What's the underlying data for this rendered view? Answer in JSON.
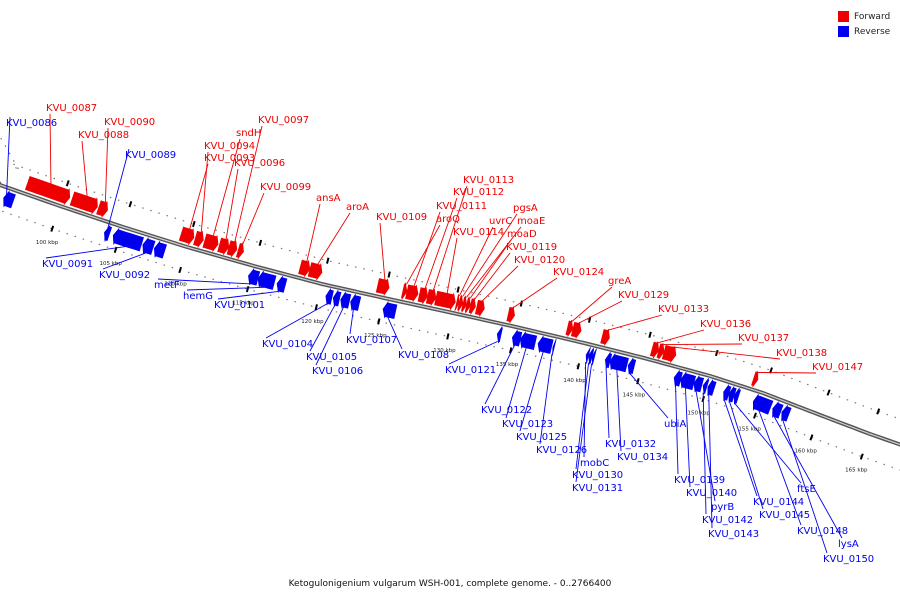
{
  "caption": "Ketogulonigenium vulgarum WSH-001, complete genome. - 0..2766400",
  "legend": [
    {
      "label": "Forward",
      "color": "#ee0000"
    },
    {
      "label": "Reverse",
      "color": "#0000ee"
    }
  ],
  "strand_colors": {
    "forward": "#ee0000",
    "reverse": "#0000ee"
  },
  "ticks": [
    {
      "kbp": 100,
      "label": "100 kbp"
    },
    {
      "kbp": 105,
      "label": "105 kbp"
    },
    {
      "kbp": 110,
      "label": "110 kbp"
    },
    {
      "kbp": 115,
      "label": "115 kbp"
    },
    {
      "kbp": 120,
      "label": "120 kbp"
    },
    {
      "kbp": 125,
      "label": "125 kbp"
    },
    {
      "kbp": 130,
      "label": "130 kbp"
    },
    {
      "kbp": 135,
      "label": "135 kbp"
    },
    {
      "kbp": 140,
      "label": "140 kbp"
    },
    {
      "kbp": 145,
      "label": "145 kbp"
    },
    {
      "kbp": 150,
      "label": "150 kbp"
    },
    {
      "kbp": 155,
      "label": "155 kbp"
    },
    {
      "kbp": 160,
      "label": "160 kbp"
    },
    {
      "kbp": 165,
      "label": "165 kbp"
    }
  ],
  "genes": [
    {
      "label": "KVU_0086",
      "strand": "-",
      "kbp": 95.6,
      "kbp_end": 96.4
    },
    {
      "label": "KVU_0087",
      "strand": "+",
      "kbp": 97.0,
      "kbp_end": 100.5
    },
    {
      "label": "KVU_0088",
      "strand": "+",
      "kbp": 100.7,
      "kbp_end": 102.7
    },
    {
      "label": "KVU_0090",
      "strand": "+",
      "kbp": 102.8,
      "kbp_end": 103.5
    },
    {
      "label": "KVU_0089",
      "strand": "-",
      "kbp": 103.8,
      "kbp_end": 104.2
    },
    {
      "label": "KVU_0091",
      "strand": "-",
      "kbp": 104.5,
      "kbp_end": 106.7
    },
    {
      "label": "KVU_0092",
      "strand": "-",
      "kbp": 106.8,
      "kbp_end": 107.6
    },
    {
      "label": "",
      "strand": "-",
      "kbp": 107.7,
      "kbp_end": 108.5
    },
    {
      "label": "KVU_0093",
      "strand": "+",
      "kbp": 109.3,
      "kbp_end": 110.3
    },
    {
      "label": "KVU_0094",
      "strand": "+",
      "kbp": 110.4,
      "kbp_end": 111.0
    },
    {
      "label": "sndH",
      "strand": "+",
      "kbp": 111.1,
      "kbp_end": 112.1
    },
    {
      "label": "KVU_0096",
      "strand": "+",
      "kbp": 112.2,
      "kbp_end": 112.9
    },
    {
      "label": "KVU_0097",
      "strand": "+",
      "kbp": 112.9,
      "kbp_end": 113.5
    },
    {
      "label": "KVU_0099",
      "strand": "+",
      "kbp": 113.6,
      "kbp_end": 114.0
    },
    {
      "label": "metF",
      "strand": "-",
      "kbp": 114.8,
      "kbp_end": 115.5
    },
    {
      "label": "hemG",
      "strand": "-",
      "kbp": 115.5,
      "kbp_end": 116.7
    },
    {
      "label": "KVU_0101",
      "strand": "-",
      "kbp": 116.9,
      "kbp_end": 117.5
    },
    {
      "label": "ansA",
      "strand": "+",
      "kbp": 118.2,
      "kbp_end": 118.9
    },
    {
      "label": "aroA",
      "strand": "+",
      "kbp": 118.9,
      "kbp_end": 119.8
    },
    {
      "label": "KVU_0104",
      "strand": "-",
      "kbp": 120.5,
      "kbp_end": 121.0
    },
    {
      "label": "KVU_0105",
      "strand": "-",
      "kbp": 121.1,
      "kbp_end": 121.6
    },
    {
      "label": "KVU_0106",
      "strand": "-",
      "kbp": 121.7,
      "kbp_end": 122.4
    },
    {
      "label": "KVU_0107",
      "strand": "-",
      "kbp": 122.5,
      "kbp_end": 123.2
    },
    {
      "label": "KVU_0109",
      "strand": "+",
      "kbp": 124.3,
      "kbp_end": 125.2
    },
    {
      "label": "KVU_0108",
      "strand": "-",
      "kbp": 125.1,
      "kbp_end": 126.0
    },
    {
      "label": "aroQ",
      "strand": "+",
      "kbp": 126.2,
      "kbp_end": 126.5
    },
    {
      "label": "KVU_0111",
      "strand": "+",
      "kbp": 126.5,
      "kbp_end": 127.3
    },
    {
      "label": "KVU_0112",
      "strand": "+",
      "kbp": 127.4,
      "kbp_end": 128.0
    },
    {
      "label": "KVU_0113",
      "strand": "+",
      "kbp": 128.0,
      "kbp_end": 128.6
    },
    {
      "label": "KVU_0114",
      "strand": "+",
      "kbp": 128.6,
      "kbp_end": 130.0
    },
    {
      "label": "uvrC",
      "strand": "+",
      "kbp": 130.1,
      "kbp_end": 130.3
    },
    {
      "label": "pgsA",
      "strand": "+",
      "kbp": 130.3,
      "kbp_end": 130.6
    },
    {
      "label": "moaE",
      "strand": "+",
      "kbp": 130.6,
      "kbp_end": 130.9
    },
    {
      "label": "moaD",
      "strand": "+",
      "kbp": 130.9,
      "kbp_end": 131.2
    },
    {
      "label": "KVU_0119",
      "strand": "+",
      "kbp": 131.2,
      "kbp_end": 131.6
    },
    {
      "label": "KVU_0120",
      "strand": "+",
      "kbp": 131.7,
      "kbp_end": 132.3
    },
    {
      "label": "KVU_0121",
      "strand": "-",
      "kbp": 133.7,
      "kbp_end": 134.0
    },
    {
      "label": "KVU_0124",
      "strand": "+",
      "kbp": 134.2,
      "kbp_end": 134.7
    },
    {
      "label": "KVU_0122",
      "strand": "-",
      "kbp": 134.9,
      "kbp_end": 135.5
    },
    {
      "label": "KVU_0123",
      "strand": "-",
      "kbp": 135.5,
      "kbp_end": 136.6
    },
    {
      "label": "KVU_0125",
      "strand": "-",
      "kbp": 136.8,
      "kbp_end": 137.8
    },
    {
      "label": "KVU_0126",
      "strand": "-",
      "kbp": 137.9,
      "kbp_end": 138.0
    },
    {
      "label": "greA",
      "strand": "+",
      "kbp": 138.6,
      "kbp_end": 139.0
    },
    {
      "label": "KVU_0129",
      "strand": "+",
      "kbp": 139.0,
      "kbp_end": 139.6
    },
    {
      "label": "mobC",
      "strand": "-",
      "kbp": 140.4,
      "kbp_end": 140.6
    },
    {
      "label": "KVU_0130",
      "strand": "-",
      "kbp": 140.6,
      "kbp_end": 140.9
    },
    {
      "label": "KVU_0131",
      "strand": "-",
      "kbp": 140.9,
      "kbp_end": 141.1
    },
    {
      "label": "KVU_0133",
      "strand": "+",
      "kbp": 141.3,
      "kbp_end": 141.9
    },
    {
      "label": "KVU_0132",
      "strand": "-",
      "kbp": 142.0,
      "kbp_end": 142.4
    },
    {
      "label": "KVU_0134",
      "strand": "-",
      "kbp": 142.4,
      "kbp_end": 143.8
    },
    {
      "label": "ubiA",
      "strand": "-",
      "kbp": 143.9,
      "kbp_end": 144.4
    },
    {
      "label": "KVU_0136",
      "strand": "+",
      "kbp": 145.4,
      "kbp_end": 145.9
    },
    {
      "label": "KVU_0137",
      "strand": "+",
      "kbp": 145.9,
      "kbp_end": 146.3
    },
    {
      "label": "KVU_0138",
      "strand": "+",
      "kbp": 146.3,
      "kbp_end": 147.2
    },
    {
      "label": "KVU_0139",
      "strand": "-",
      "kbp": 147.5,
      "kbp_end": 148.0
    },
    {
      "label": "KVU_0140",
      "strand": "-",
      "kbp": 148.0,
      "kbp_end": 149.0
    },
    {
      "label": "pyrB",
      "strand": "-",
      "kbp": 149.0,
      "kbp_end": 149.6
    },
    {
      "label": "KVU_0142",
      "strand": "-",
      "kbp": 149.7,
      "kbp_end": 150.0
    },
    {
      "label": "KVU_0143",
      "strand": "-",
      "kbp": 150.1,
      "kbp_end": 150.7
    },
    {
      "label": "KVU_0144",
      "strand": "-",
      "kbp": 151.6,
      "kbp_end": 152.1
    },
    {
      "label": "KVU_0145",
      "strand": "-",
      "kbp": 152.1,
      "kbp_end": 152.6
    },
    {
      "label": "ftsE",
      "strand": "-",
      "kbp": 152.6,
      "kbp_end": 153.0
    },
    {
      "label": "KVU_0147",
      "strand": "+",
      "kbp": 153.8,
      "kbp_end": 154.2
    },
    {
      "label": "KVU_0148",
      "strand": "-",
      "kbp": 154.4,
      "kbp_end": 156.0
    },
    {
      "label": "lysA",
      "strand": "-",
      "kbp": 156.2,
      "kbp_end": 156.9
    },
    {
      "label": "KVU_0150",
      "strand": "-",
      "kbp": 157.0,
      "kbp_end": 157.6
    }
  ]
}
